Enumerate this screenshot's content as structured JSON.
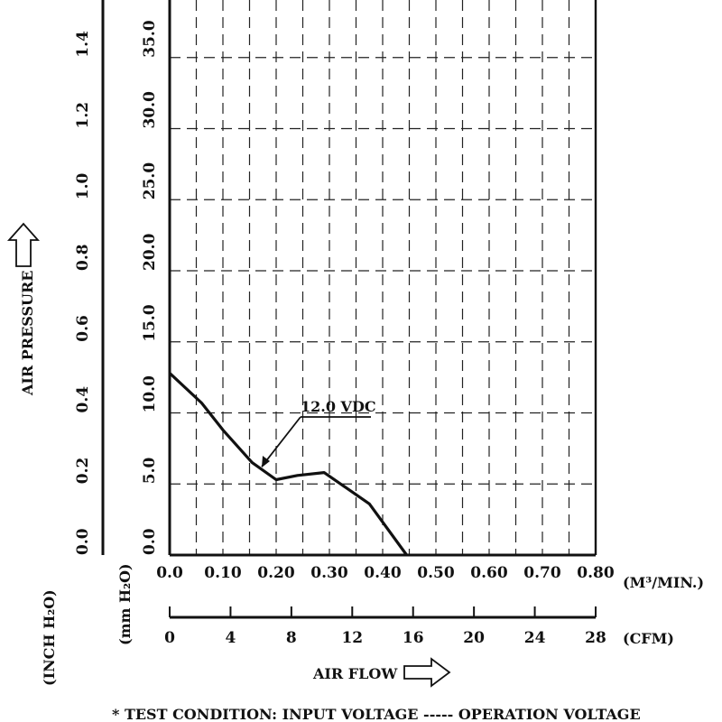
{
  "chart_data": {
    "type": "line",
    "title": "",
    "xlabel": "AIR FLOW",
    "x_unit_primary": "(M³/MIN.)",
    "x_unit_secondary": "(CFM)",
    "ylabel": "AIR PRESSURE",
    "y_unit_inch": "(INCH H₂O)",
    "y_unit_mm": "(mm H₂O)",
    "xlim": [
      0,
      0.8
    ],
    "ylim_mm": [
      0,
      40
    ],
    "x_ticks": [
      "0.0",
      "0.10",
      "0.20",
      "0.30",
      "0.40",
      "0.50",
      "0.60",
      "0.70",
      "0.80"
    ],
    "x_ticks_cfm": [
      "0",
      "4",
      "8",
      "12",
      "16",
      "20",
      "24",
      "28"
    ],
    "y_ticks_mm": [
      "0.0",
      "5.0",
      "10.0",
      "15.0",
      "20.0",
      "25.0",
      "30.0",
      "35.0"
    ],
    "y_ticks_inch": [
      "0.0",
      "0.2",
      "0.4",
      "0.6",
      "0.8",
      "1.0",
      "1.2",
      "1.4"
    ],
    "grid": true,
    "series": [
      {
        "name": "12.0 VDC",
        "x": [
          0.0,
          0.06,
          0.1,
          0.155,
          0.2,
          0.24,
          0.29,
          0.375,
          0.445
        ],
        "y": [
          12.8,
          10.7,
          8.8,
          6.5,
          5.3,
          5.6,
          5.8,
          3.6,
          0.0
        ]
      }
    ],
    "annotation": "12.0 VDC",
    "footnote": "* TEST CONDITION: INPUT VOLTAGE ----- OPERATION VOLTAGE"
  }
}
